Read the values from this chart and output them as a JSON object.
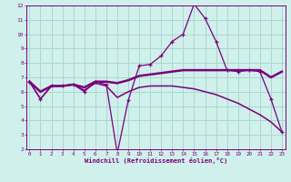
{
  "x": [
    0,
    1,
    2,
    3,
    4,
    5,
    6,
    7,
    8,
    9,
    10,
    11,
    12,
    13,
    14,
    15,
    16,
    17,
    18,
    19,
    20,
    21,
    22,
    23
  ],
  "line_spiky": [
    6.7,
    5.5,
    6.4,
    6.4,
    6.5,
    6.0,
    6.7,
    6.5,
    1.7,
    5.4,
    7.8,
    7.9,
    8.5,
    9.5,
    10.0,
    12.1,
    11.1,
    9.5,
    7.5,
    7.4,
    7.5,
    7.4,
    5.5,
    3.2
  ],
  "line_upper": [
    6.7,
    6.0,
    6.4,
    6.4,
    6.5,
    6.3,
    6.7,
    6.7,
    6.6,
    6.8,
    7.1,
    7.2,
    7.3,
    7.4,
    7.5,
    7.5,
    7.5,
    7.5,
    7.5,
    7.5,
    7.5,
    7.5,
    7.0,
    7.4
  ],
  "line_lower": [
    6.7,
    5.5,
    6.4,
    6.4,
    6.5,
    6.1,
    6.6,
    6.4,
    5.6,
    6.0,
    6.3,
    6.4,
    6.4,
    6.4,
    6.3,
    6.2,
    6.0,
    5.8,
    5.5,
    5.2,
    4.8,
    4.4,
    3.9,
    3.2
  ],
  "line_color": "#7b007b",
  "bg_color": "#d0f0eb",
  "grid_color": "#a8d8d0",
  "xlabel": "Windchill (Refroidissement éolien,°C)",
  "xlim": [
    0,
    23
  ],
  "ylim": [
    2,
    12
  ],
  "yticks": [
    2,
    3,
    4,
    5,
    6,
    7,
    8,
    9,
    10,
    11,
    12
  ],
  "xticks": [
    0,
    1,
    2,
    3,
    4,
    5,
    6,
    7,
    8,
    9,
    10,
    11,
    12,
    13,
    14,
    15,
    16,
    17,
    18,
    19,
    20,
    21,
    22,
    23
  ]
}
